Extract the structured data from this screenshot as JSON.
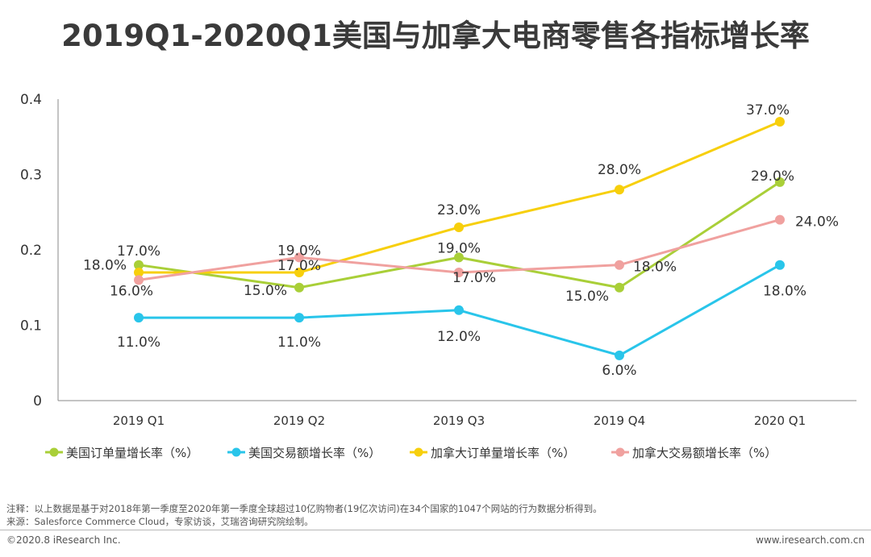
{
  "title": "2019Q1-2020Q1美国与加拿大电商零售各指标增长率",
  "chart_data": {
    "type": "line",
    "categories": [
      "2019 Q1",
      "2019 Q2",
      "2019 Q3",
      "2019 Q4",
      "2020 Q1"
    ],
    "ylim": [
      0,
      0.4
    ],
    "yticks": [
      {
        "value": 0,
        "label": "0"
      },
      {
        "value": 0.1,
        "label": "0.1"
      },
      {
        "value": 0.2,
        "label": "0.2"
      },
      {
        "value": 0.3,
        "label": "0.3"
      },
      {
        "value": 0.4,
        "label": "0.4"
      }
    ],
    "grid": false,
    "legend_position": "bottom",
    "series": [
      {
        "name": "美国订单量增长率（%）",
        "color": "#a9cf38",
        "values": [
          0.18,
          0.15,
          0.19,
          0.15,
          0.29
        ],
        "labels": [
          "18.0%",
          "15.0%",
          "19.0%",
          "15.0%",
          "29.0%"
        ]
      },
      {
        "name": "美国交易额增长率（%）",
        "color": "#29c5ea",
        "values": [
          0.11,
          0.11,
          0.12,
          0.06,
          0.18
        ],
        "labels": [
          "11.0%",
          "11.0%",
          "12.0%",
          "6.0%",
          "18.0%"
        ]
      },
      {
        "name": "加拿大订单量增长率（%）",
        "color": "#f7cf0c",
        "values": [
          0.17,
          0.17,
          0.23,
          0.28,
          0.37
        ],
        "labels": [
          "17.0%",
          "17.0%",
          "23.0%",
          "28.0%",
          "37.0%"
        ]
      },
      {
        "name": "加拿大交易额增长率（%）",
        "color": "#f0a19f",
        "values": [
          0.16,
          0.19,
          0.17,
          0.18,
          0.24
        ],
        "labels": [
          "16.0%",
          "19.0%",
          "17.0%",
          "18.0%",
          "24.0%"
        ]
      }
    ]
  },
  "notes": {
    "note": "注释：以上数据是基于对2018年第一季度至2020年第一季度全球超过10亿购物者(19亿次访问)在34个国家的1047个网站的行为数据分析得到。",
    "source": "来源：Salesforce Commerce Cloud，专家访谈，艾瑞咨询研究院绘制。"
  },
  "footer": {
    "copyright": "©2020.8 iResearch Inc.",
    "website": "www.iresearch.com.cn"
  }
}
